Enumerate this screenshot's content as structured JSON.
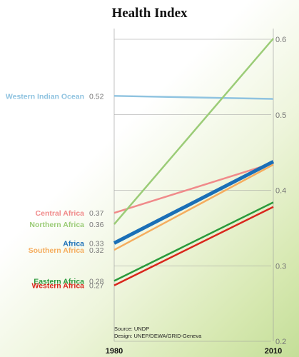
{
  "chart_data": {
    "type": "line",
    "title": "Health Index",
    "x": [
      "1980",
      "2010"
    ],
    "ylim": [
      0.2,
      0.6
    ],
    "yticks": [
      "0.6",
      "0.5",
      "0.4",
      "0.3",
      "0.2"
    ],
    "grid": true,
    "series": [
      {
        "name": "Western Indian Ocean",
        "label_value": "0.52",
        "values": [
          0.525,
          0.521
        ],
        "color": "#8fc3e0",
        "width": 2.5
      },
      {
        "name": "Central Africa",
        "label_value": "0.37",
        "values": [
          0.37,
          0.436
        ],
        "color": "#f08a8a",
        "width": 2.5
      },
      {
        "name": "Northern Africa",
        "label_value": "0.36",
        "values": [
          0.355,
          0.601
        ],
        "color": "#9bcc77",
        "width": 2.5
      },
      {
        "name": "Africa",
        "label_value": "0.33",
        "values": [
          0.33,
          0.438
        ],
        "color": "#1a6fb7",
        "width": 5
      },
      {
        "name": "Southern Africa",
        "label_value": "0.32",
        "values": [
          0.321,
          0.434
        ],
        "color": "#f5ad5e",
        "width": 2.5
      },
      {
        "name": "Eastern Africa",
        "label_value": "0.28",
        "values": [
          0.28,
          0.384
        ],
        "color": "#2a9a3c",
        "width": 2.5
      },
      {
        "name": "Western Africa",
        "label_value": "0.27",
        "values": [
          0.274,
          0.378
        ],
        "color": "#d9261c",
        "width": 2.5
      }
    ]
  },
  "source": {
    "line1": "Source: UNDP",
    "line2": "Design: UNEP/DEWA/GRID-Geneva"
  }
}
